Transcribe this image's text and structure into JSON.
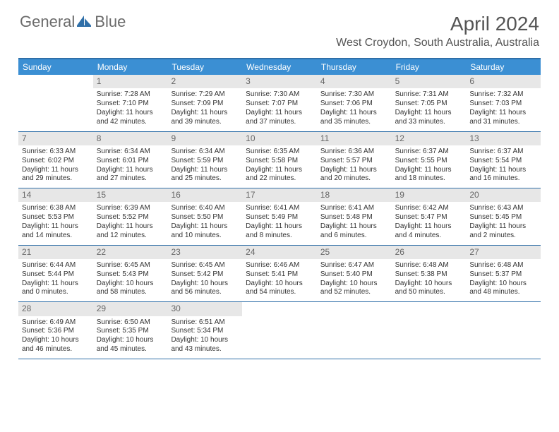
{
  "logo": {
    "text1": "General",
    "text2": "Blue"
  },
  "title": "April 2024",
  "location": "West Croydon, South Australia, Australia",
  "colors": {
    "header_bar": "#3b8fd3",
    "rule": "#2f6fa8",
    "daynum_bg": "#e7e7e7",
    "text": "#333333",
    "title_text": "#555555",
    "logo_text": "#6b6b6b"
  },
  "daysOfWeek": [
    "Sunday",
    "Monday",
    "Tuesday",
    "Wednesday",
    "Thursday",
    "Friday",
    "Saturday"
  ],
  "weeks": [
    [
      {
        "blank": true
      },
      {
        "n": "1",
        "sunrise": "7:28 AM",
        "sunset": "7:10 PM",
        "day_h": 11,
        "day_m": 42
      },
      {
        "n": "2",
        "sunrise": "7:29 AM",
        "sunset": "7:09 PM",
        "day_h": 11,
        "day_m": 39
      },
      {
        "n": "3",
        "sunrise": "7:30 AM",
        "sunset": "7:07 PM",
        "day_h": 11,
        "day_m": 37
      },
      {
        "n": "4",
        "sunrise": "7:30 AM",
        "sunset": "7:06 PM",
        "day_h": 11,
        "day_m": 35
      },
      {
        "n": "5",
        "sunrise": "7:31 AM",
        "sunset": "7:05 PM",
        "day_h": 11,
        "day_m": 33
      },
      {
        "n": "6",
        "sunrise": "7:32 AM",
        "sunset": "7:03 PM",
        "day_h": 11,
        "day_m": 31
      }
    ],
    [
      {
        "n": "7",
        "sunrise": "6:33 AM",
        "sunset": "6:02 PM",
        "day_h": 11,
        "day_m": 29
      },
      {
        "n": "8",
        "sunrise": "6:34 AM",
        "sunset": "6:01 PM",
        "day_h": 11,
        "day_m": 27
      },
      {
        "n": "9",
        "sunrise": "6:34 AM",
        "sunset": "5:59 PM",
        "day_h": 11,
        "day_m": 25
      },
      {
        "n": "10",
        "sunrise": "6:35 AM",
        "sunset": "5:58 PM",
        "day_h": 11,
        "day_m": 22
      },
      {
        "n": "11",
        "sunrise": "6:36 AM",
        "sunset": "5:57 PM",
        "day_h": 11,
        "day_m": 20
      },
      {
        "n": "12",
        "sunrise": "6:37 AM",
        "sunset": "5:55 PM",
        "day_h": 11,
        "day_m": 18
      },
      {
        "n": "13",
        "sunrise": "6:37 AM",
        "sunset": "5:54 PM",
        "day_h": 11,
        "day_m": 16
      }
    ],
    [
      {
        "n": "14",
        "sunrise": "6:38 AM",
        "sunset": "5:53 PM",
        "day_h": 11,
        "day_m": 14
      },
      {
        "n": "15",
        "sunrise": "6:39 AM",
        "sunset": "5:52 PM",
        "day_h": 11,
        "day_m": 12
      },
      {
        "n": "16",
        "sunrise": "6:40 AM",
        "sunset": "5:50 PM",
        "day_h": 11,
        "day_m": 10
      },
      {
        "n": "17",
        "sunrise": "6:41 AM",
        "sunset": "5:49 PM",
        "day_h": 11,
        "day_m": 8
      },
      {
        "n": "18",
        "sunrise": "6:41 AM",
        "sunset": "5:48 PM",
        "day_h": 11,
        "day_m": 6
      },
      {
        "n": "19",
        "sunrise": "6:42 AM",
        "sunset": "5:47 PM",
        "day_h": 11,
        "day_m": 4
      },
      {
        "n": "20",
        "sunrise": "6:43 AM",
        "sunset": "5:45 PM",
        "day_h": 11,
        "day_m": 2
      }
    ],
    [
      {
        "n": "21",
        "sunrise": "6:44 AM",
        "sunset": "5:44 PM",
        "day_h": 11,
        "day_m": 0
      },
      {
        "n": "22",
        "sunrise": "6:45 AM",
        "sunset": "5:43 PM",
        "day_h": 10,
        "day_m": 58
      },
      {
        "n": "23",
        "sunrise": "6:45 AM",
        "sunset": "5:42 PM",
        "day_h": 10,
        "day_m": 56
      },
      {
        "n": "24",
        "sunrise": "6:46 AM",
        "sunset": "5:41 PM",
        "day_h": 10,
        "day_m": 54
      },
      {
        "n": "25",
        "sunrise": "6:47 AM",
        "sunset": "5:40 PM",
        "day_h": 10,
        "day_m": 52
      },
      {
        "n": "26",
        "sunrise": "6:48 AM",
        "sunset": "5:38 PM",
        "day_h": 10,
        "day_m": 50
      },
      {
        "n": "27",
        "sunrise": "6:48 AM",
        "sunset": "5:37 PM",
        "day_h": 10,
        "day_m": 48
      }
    ],
    [
      {
        "n": "28",
        "sunrise": "6:49 AM",
        "sunset": "5:36 PM",
        "day_h": 10,
        "day_m": 46
      },
      {
        "n": "29",
        "sunrise": "6:50 AM",
        "sunset": "5:35 PM",
        "day_h": 10,
        "day_m": 45
      },
      {
        "n": "30",
        "sunrise": "6:51 AM",
        "sunset": "5:34 PM",
        "day_h": 10,
        "day_m": 43
      },
      {
        "blank": true
      },
      {
        "blank": true
      },
      {
        "blank": true
      },
      {
        "blank": true
      }
    ]
  ],
  "labels": {
    "sunrise_prefix": "Sunrise: ",
    "sunset_prefix": "Sunset: ",
    "daylight_prefix": "Daylight: ",
    "hours_word": " hours",
    "and_word": "and ",
    "minutes_word": " minutes."
  }
}
